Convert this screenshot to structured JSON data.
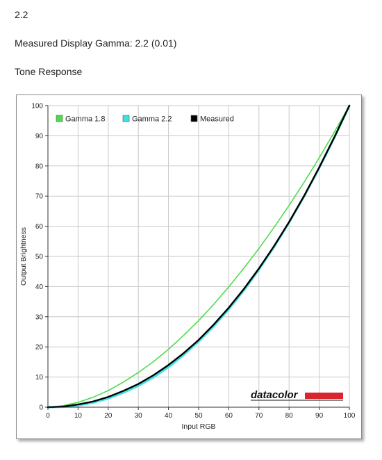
{
  "header": {
    "section_number": "2.2",
    "measured_gamma_text": "Measured Display Gamma: 2.2 (0.01)",
    "chart_heading": "Tone Response"
  },
  "logo": {
    "text": "datacolor",
    "bar_color": "#d7262e"
  },
  "chart_data": {
    "type": "line",
    "title": "",
    "xlabel": "Input RGB",
    "ylabel": "Output Brightness",
    "xlim": [
      0,
      100
    ],
    "ylim": [
      0,
      100
    ],
    "x_ticks": [
      0,
      10,
      20,
      30,
      40,
      50,
      60,
      70,
      80,
      90,
      100
    ],
    "y_ticks": [
      0,
      10,
      20,
      30,
      40,
      50,
      60,
      70,
      80,
      90,
      100
    ],
    "grid": true,
    "legend_position": "top-left",
    "x": [
      0,
      5,
      10,
      15,
      20,
      25,
      30,
      35,
      40,
      45,
      50,
      55,
      60,
      65,
      70,
      75,
      80,
      85,
      90,
      95,
      100
    ],
    "series": [
      {
        "name": "Gamma 1.8",
        "color": "#4ddc4d",
        "values": [
          0,
          0.5,
          1.6,
          3.3,
          5.5,
          8.3,
          11.5,
          15.1,
          19.2,
          23.8,
          28.7,
          34.1,
          39.9,
          46.1,
          52.6,
          59.6,
          66.9,
          74.6,
          82.7,
          91.2,
          100
        ]
      },
      {
        "name": "Gamma 2.2",
        "color": "#40e0e0",
        "values": [
          0,
          0.1,
          0.6,
          1.5,
          2.9,
          4.8,
          7.1,
          9.9,
          13.3,
          17.3,
          21.8,
          26.8,
          32.5,
          38.7,
          45.6,
          53.1,
          61.2,
          69.9,
          79.3,
          89.3,
          100
        ]
      },
      {
        "name": "Measured",
        "color": "#000000",
        "values": [
          0,
          0.2,
          0.9,
          1.9,
          3.4,
          5.4,
          7.7,
          10.6,
          14.0,
          17.9,
          22.3,
          27.4,
          33.0,
          39.2,
          46.0,
          53.4,
          61.4,
          70.1,
          79.5,
          89.5,
          100
        ]
      }
    ]
  }
}
